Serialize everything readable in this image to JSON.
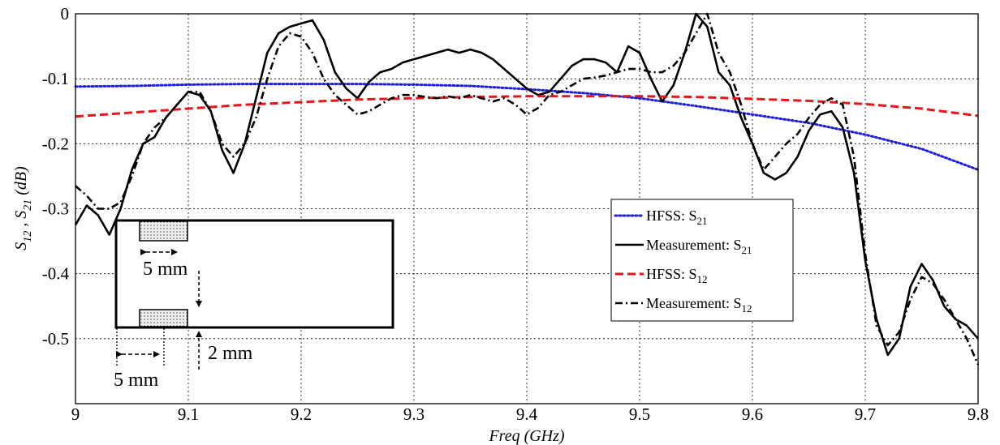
{
  "chart_data": {
    "type": "line",
    "xlabel": "Freq (GHz)",
    "ylabel_parts": [
      "S",
      "12",
      " , ",
      "S",
      "21",
      " (dB)"
    ],
    "xlim": [
      9.0,
      9.8
    ],
    "ylim": [
      -0.6,
      0.0
    ],
    "xticks": [
      "9",
      "9.1",
      "9.2",
      "9.3",
      "9.4",
      "9.5",
      "9.6",
      "9.7",
      "9.8"
    ],
    "yticks": [
      "0",
      "-0.1",
      "-0.2",
      "-0.3",
      "-0.4",
      "-0.5"
    ],
    "ytick_values": [
      0,
      -0.1,
      -0.2,
      -0.3,
      -0.4,
      -0.5
    ],
    "grid": true,
    "legend_position": "right",
    "series": [
      {
        "name": "HFSS: S21",
        "label_main": "HFSS: S",
        "label_sub": "21",
        "color": "#1f1fdc",
        "style": "dotted",
        "x": [
          9.0,
          9.05,
          9.1,
          9.15,
          9.2,
          9.25,
          9.3,
          9.35,
          9.4,
          9.45,
          9.5,
          9.55,
          9.6,
          9.65,
          9.7,
          9.75,
          9.8
        ],
        "y": [
          -0.112,
          -0.111,
          -0.109,
          -0.108,
          -0.108,
          -0.108,
          -0.109,
          -0.111,
          -0.116,
          -0.122,
          -0.13,
          -0.142,
          -0.155,
          -0.168,
          -0.186,
          -0.208,
          -0.24
        ]
      },
      {
        "name": "Measurement: S21",
        "label_main": "Measurement: S",
        "label_sub": "21",
        "color": "#000000",
        "style": "solid",
        "x": [
          9.0,
          9.01,
          9.02,
          9.03,
          9.04,
          9.05,
          9.06,
          9.07,
          9.08,
          9.09,
          9.1,
          9.11,
          9.12,
          9.13,
          9.14,
          9.15,
          9.16,
          9.17,
          9.18,
          9.19,
          9.2,
          9.21,
          9.22,
          9.23,
          9.24,
          9.25,
          9.26,
          9.27,
          9.28,
          9.29,
          9.3,
          9.31,
          9.32,
          9.33,
          9.34,
          9.35,
          9.36,
          9.37,
          9.38,
          9.39,
          9.4,
          9.41,
          9.42,
          9.43,
          9.44,
          9.45,
          9.46,
          9.47,
          9.48,
          9.49,
          9.5,
          9.51,
          9.52,
          9.53,
          9.54,
          9.55,
          9.56,
          9.57,
          9.58,
          9.59,
          9.6,
          9.61,
          9.62,
          9.63,
          9.64,
          9.65,
          9.66,
          9.67,
          9.68,
          9.69,
          9.7,
          9.71,
          9.72,
          9.73,
          9.74,
          9.75,
          9.76,
          9.77,
          9.78,
          9.79,
          9.8
        ],
        "y": [
          -0.325,
          -0.295,
          -0.31,
          -0.34,
          -0.3,
          -0.24,
          -0.2,
          -0.19,
          -0.16,
          -0.14,
          -0.12,
          -0.125,
          -0.15,
          -0.21,
          -0.245,
          -0.2,
          -0.13,
          -0.06,
          -0.03,
          -0.02,
          -0.015,
          -0.01,
          -0.04,
          -0.09,
          -0.115,
          -0.13,
          -0.105,
          -0.09,
          -0.085,
          -0.075,
          -0.07,
          -0.065,
          -0.06,
          -0.055,
          -0.06,
          -0.055,
          -0.06,
          -0.07,
          -0.085,
          -0.1,
          -0.115,
          -0.125,
          -0.12,
          -0.1,
          -0.08,
          -0.07,
          -0.07,
          -0.075,
          -0.09,
          -0.05,
          -0.06,
          -0.1,
          -0.135,
          -0.11,
          -0.06,
          0.0,
          -0.02,
          -0.09,
          -0.11,
          -0.16,
          -0.2,
          -0.245,
          -0.255,
          -0.245,
          -0.22,
          -0.18,
          -0.155,
          -0.15,
          -0.175,
          -0.245,
          -0.38,
          -0.47,
          -0.525,
          -0.5,
          -0.42,
          -0.385,
          -0.41,
          -0.45,
          -0.47,
          -0.48,
          -0.5
        ]
      },
      {
        "name": "HFSS: S12",
        "label_main": "HFSS: S",
        "label_sub": "12",
        "color": "#e8141a",
        "style": "dashed",
        "x": [
          9.0,
          9.05,
          9.1,
          9.15,
          9.2,
          9.25,
          9.3,
          9.35,
          9.4,
          9.45,
          9.5,
          9.55,
          9.6,
          9.65,
          9.7,
          9.75,
          9.8
        ],
        "y": [
          -0.158,
          -0.152,
          -0.146,
          -0.14,
          -0.136,
          -0.132,
          -0.13,
          -0.128,
          -0.127,
          -0.127,
          -0.127,
          -0.128,
          -0.131,
          -0.134,
          -0.139,
          -0.146,
          -0.157
        ]
      },
      {
        "name": "Measurement: S12",
        "label_main": "Measurement: S",
        "label_sub": "12",
        "color": "#000000",
        "style": "dashdot",
        "x": [
          9.0,
          9.01,
          9.02,
          9.03,
          9.04,
          9.05,
          9.06,
          9.07,
          9.08,
          9.09,
          9.1,
          9.11,
          9.12,
          9.13,
          9.14,
          9.15,
          9.16,
          9.17,
          9.18,
          9.19,
          9.2,
          9.21,
          9.22,
          9.23,
          9.24,
          9.25,
          9.26,
          9.27,
          9.28,
          9.29,
          9.3,
          9.31,
          9.32,
          9.33,
          9.34,
          9.35,
          9.36,
          9.37,
          9.38,
          9.39,
          9.4,
          9.41,
          9.42,
          9.43,
          9.44,
          9.45,
          9.46,
          9.47,
          9.48,
          9.49,
          9.5,
          9.51,
          9.52,
          9.53,
          9.54,
          9.55,
          9.56,
          9.57,
          9.58,
          9.59,
          9.6,
          9.61,
          9.62,
          9.63,
          9.64,
          9.65,
          9.66,
          9.67,
          9.68,
          9.69,
          9.7,
          9.71,
          9.72,
          9.73,
          9.74,
          9.75,
          9.76,
          9.77,
          9.78,
          9.79,
          9.8
        ],
        "y": [
          -0.265,
          -0.28,
          -0.3,
          -0.3,
          -0.29,
          -0.25,
          -0.2,
          -0.175,
          -0.16,
          -0.14,
          -0.12,
          -0.12,
          -0.15,
          -0.2,
          -0.22,
          -0.2,
          -0.16,
          -0.1,
          -0.05,
          -0.03,
          -0.035,
          -0.06,
          -0.1,
          -0.125,
          -0.14,
          -0.155,
          -0.15,
          -0.14,
          -0.13,
          -0.125,
          -0.125,
          -0.128,
          -0.13,
          -0.127,
          -0.13,
          -0.125,
          -0.13,
          -0.135,
          -0.13,
          -0.14,
          -0.155,
          -0.145,
          -0.125,
          -0.12,
          -0.11,
          -0.1,
          -0.098,
          -0.095,
          -0.09,
          -0.085,
          -0.085,
          -0.09,
          -0.09,
          -0.08,
          -0.06,
          -0.03,
          0.0,
          -0.06,
          -0.09,
          -0.14,
          -0.2,
          -0.24,
          -0.22,
          -0.2,
          -0.185,
          -0.16,
          -0.14,
          -0.13,
          -0.14,
          -0.22,
          -0.37,
          -0.48,
          -0.51,
          -0.49,
          -0.44,
          -0.405,
          -0.415,
          -0.44,
          -0.47,
          -0.5,
          -0.54
        ]
      }
    ]
  },
  "inset": {
    "dim_width_top": "5 mm",
    "dim_offset": "5 mm",
    "dim_gap": "2 mm"
  }
}
